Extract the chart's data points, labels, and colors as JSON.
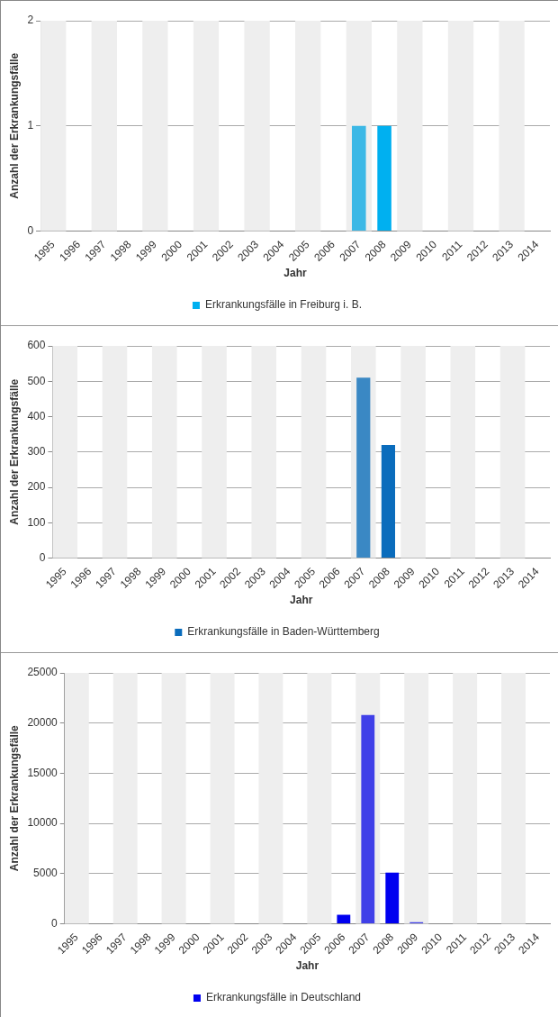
{
  "chart_data": [
    {
      "type": "bar",
      "categories": [
        "1995",
        "1996",
        "1997",
        "1998",
        "1999",
        "2000",
        "2001",
        "2002",
        "2003",
        "2004",
        "2005",
        "2006",
        "2007",
        "2008",
        "2009",
        "2010",
        "2011",
        "2012",
        "2013",
        "2014"
      ],
      "series": [
        {
          "name": "Erkrankungsfälle in Freiburg i. B.",
          "color": "#00b0f0",
          "colors": [
            "#00b0f0",
            "#00b0f0",
            "#00b0f0",
            "#00b0f0",
            "#00b0f0",
            "#00b0f0",
            "#00b0f0",
            "#00b0f0",
            "#00b0f0",
            "#00b0f0",
            "#00b0f0",
            "#00b0f0",
            "#3cb8e6",
            "#00b0f0",
            "#00b0f0",
            "#00b0f0",
            "#00b0f0",
            "#00b0f0",
            "#00b0f0",
            "#00b0f0"
          ],
          "values": [
            0,
            0,
            0,
            0,
            0,
            0,
            0,
            0,
            0,
            0,
            0,
            0,
            1,
            1,
            0,
            0,
            0,
            0,
            0,
            0
          ]
        }
      ],
      "xlabel": "Jahr",
      "ylabel": "Anzahl der Erkrankungsfälle",
      "ylim": [
        0,
        2
      ],
      "yticks": [
        0,
        1,
        2
      ],
      "grid": "y",
      "legend": "bottom",
      "bands": [
        {
          "axis": "x",
          "from": "1995",
          "to": "1995",
          "color": "#eeeeee"
        },
        {
          "axis": "x",
          "from": "1997",
          "to": "1997",
          "color": "#eeeeee"
        },
        {
          "axis": "x",
          "from": "1999",
          "to": "1999",
          "color": "#eeeeee"
        },
        {
          "axis": "x",
          "from": "2001",
          "to": "2001",
          "color": "#eeeeee"
        },
        {
          "axis": "x",
          "from": "2003",
          "to": "2003",
          "color": "#eeeeee"
        },
        {
          "axis": "x",
          "from": "2005",
          "to": "2005",
          "color": "#eeeeee"
        },
        {
          "axis": "x",
          "from": "2007",
          "to": "2007",
          "color": "#eeeeee"
        },
        {
          "axis": "x",
          "from": "2009",
          "to": "2009",
          "color": "#eeeeee"
        },
        {
          "axis": "x",
          "from": "2011",
          "to": "2011",
          "color": "#eeeeee"
        },
        {
          "axis": "x",
          "from": "2013",
          "to": "2013",
          "color": "#eeeeee"
        }
      ]
    },
    {
      "type": "bar",
      "categories": [
        "1995",
        "1996",
        "1997",
        "1998",
        "1999",
        "2000",
        "2001",
        "2002",
        "2003",
        "2004",
        "2005",
        "2006",
        "2007",
        "2008",
        "2009",
        "2010",
        "2011",
        "2012",
        "2013",
        "2014"
      ],
      "series": [
        {
          "name": "Erkrankungsfälle in Baden-Württemberg",
          "color": "#0a6cbc",
          "colors": [
            "#0a6cbc",
            "#0a6cbc",
            "#0a6cbc",
            "#0a6cbc",
            "#0a6cbc",
            "#0a6cbc",
            "#0a6cbc",
            "#0a6cbc",
            "#0a6cbc",
            "#0a6cbc",
            "#0a6cbc",
            "#0a6cbc",
            "#3a88c4",
            "#0a6cbc",
            "#0a6cbc",
            "#0a6cbc",
            "#0a6cbc",
            "#0a6cbc",
            "#0a6cbc",
            "#0a6cbc"
          ],
          "values": [
            0,
            0,
            0,
            0,
            0,
            0,
            0,
            0,
            0,
            0,
            0,
            0,
            510,
            320,
            0,
            0,
            0,
            0,
            0,
            0
          ]
        }
      ],
      "xlabel": "Jahr",
      "ylabel": "Anzahl der Erkrankungsfälle",
      "ylim": [
        0,
        600
      ],
      "yticks": [
        0,
        100,
        200,
        300,
        400,
        500,
        600
      ],
      "grid": "y",
      "legend": "bottom",
      "bands": [
        {
          "axis": "x",
          "from": "1995",
          "to": "1995",
          "color": "#eeeeee"
        },
        {
          "axis": "x",
          "from": "1997",
          "to": "1997",
          "color": "#eeeeee"
        },
        {
          "axis": "x",
          "from": "1999",
          "to": "1999",
          "color": "#eeeeee"
        },
        {
          "axis": "x",
          "from": "2001",
          "to": "2001",
          "color": "#eeeeee"
        },
        {
          "axis": "x",
          "from": "2003",
          "to": "2003",
          "color": "#eeeeee"
        },
        {
          "axis": "x",
          "from": "2005",
          "to": "2005",
          "color": "#eeeeee"
        },
        {
          "axis": "x",
          "from": "2007",
          "to": "2007",
          "color": "#eeeeee"
        },
        {
          "axis": "x",
          "from": "2009",
          "to": "2009",
          "color": "#eeeeee"
        },
        {
          "axis": "x",
          "from": "2011",
          "to": "2011",
          "color": "#eeeeee"
        },
        {
          "axis": "x",
          "from": "2013",
          "to": "2013",
          "color": "#eeeeee"
        }
      ]
    },
    {
      "type": "bar",
      "categories": [
        "1995",
        "1996",
        "1997",
        "1998",
        "1999",
        "2000",
        "2001",
        "2002",
        "2003",
        "2004",
        "2005",
        "2006",
        "2007",
        "2008",
        "2009",
        "2010",
        "2011",
        "2012",
        "2013",
        "2014"
      ],
      "series": [
        {
          "name": "Erkrankungsfälle in Deutschland",
          "color": "#0000f0",
          "colors": [
            "#0000f0",
            "#0000f0",
            "#0000f0",
            "#0000f0",
            "#0000f0",
            "#0000f0",
            "#0000f0",
            "#0000f0",
            "#0000f0",
            "#0000f0",
            "#0000f0",
            "#0000f0",
            "#4040e8",
            "#0000f0",
            "#4040e8",
            "#0000f0",
            "#0000f0",
            "#0000f0",
            "#0000f0",
            "#0000f0"
          ],
          "values": [
            0,
            0,
            0,
            0,
            0,
            0,
            0,
            0,
            0,
            0,
            0,
            900,
            20800,
            5100,
            150,
            0,
            0,
            0,
            0,
            0
          ]
        }
      ],
      "xlabel": "Jahr",
      "ylabel": "Anzahl der Erkrankungsfälle",
      "ylim": [
        0,
        25000
      ],
      "yticks": [
        0,
        5000,
        10000,
        15000,
        20000,
        25000
      ],
      "grid": "y",
      "legend": "bottom",
      "bands": [
        {
          "axis": "x",
          "from": "1995",
          "to": "1995",
          "color": "#eeeeee"
        },
        {
          "axis": "x",
          "from": "1997",
          "to": "1997",
          "color": "#eeeeee"
        },
        {
          "axis": "x",
          "from": "1999",
          "to": "1999",
          "color": "#eeeeee"
        },
        {
          "axis": "x",
          "from": "2001",
          "to": "2001",
          "color": "#eeeeee"
        },
        {
          "axis": "x",
          "from": "2003",
          "to": "2003",
          "color": "#eeeeee"
        },
        {
          "axis": "x",
          "from": "2005",
          "to": "2005",
          "color": "#eeeeee"
        },
        {
          "axis": "x",
          "from": "2007",
          "to": "2007",
          "color": "#eeeeee"
        },
        {
          "axis": "x",
          "from": "2009",
          "to": "2009",
          "color": "#eeeeee"
        },
        {
          "axis": "x",
          "from": "2011",
          "to": "2011",
          "color": "#eeeeee"
        },
        {
          "axis": "x",
          "from": "2013",
          "to": "2013",
          "color": "#eeeeee"
        }
      ]
    }
  ]
}
